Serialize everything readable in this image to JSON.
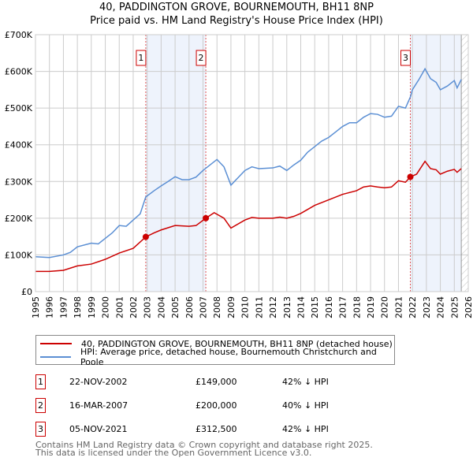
{
  "chart_data": {
    "type": "line",
    "title": "40, PADDINGTON GROVE, BOURNEMOUTH, BH11 8NP",
    "subtitle": "Price paid vs. HM Land Registry's House Price Index (HPI)",
    "xlim": [
      1995,
      2026
    ],
    "ylim": [
      0,
      700000
    ],
    "x_ticks": [
      "1995",
      "1996",
      "1997",
      "1998",
      "1999",
      "2000",
      "2001",
      "2002",
      "2003",
      "2004",
      "2005",
      "2006",
      "2007",
      "2008",
      "2009",
      "2010",
      "2011",
      "2012",
      "2013",
      "2014",
      "2015",
      "2016",
      "2017",
      "2018",
      "2019",
      "2020",
      "2021",
      "2022",
      "2023",
      "2024",
      "2025",
      "2026"
    ],
    "y_ticks": [
      {
        "v": 0,
        "label": "£0"
      },
      {
        "v": 100000,
        "label": "£100K"
      },
      {
        "v": 200000,
        "label": "£200K"
      },
      {
        "v": 300000,
        "label": "£300K"
      },
      {
        "v": 400000,
        "label": "£400K"
      },
      {
        "v": 500000,
        "label": "£500K"
      },
      {
        "v": 600000,
        "label": "£600K"
      },
      {
        "v": 700000,
        "label": "£700K"
      }
    ],
    "grid": true,
    "forecast_from": 2025.5,
    "series": [
      {
        "name": "40, PADDINGTON GROVE, BOURNEMOUTH, BH11 8NP (detached house)",
        "color": "#cc0000",
        "x": [
          1995,
          1996,
          1997,
          1998,
          1999,
          2000,
          2001,
          2002,
          2002.9,
          2003.5,
          2004,
          2005,
          2006,
          2006.5,
          2007.2,
          2007.8,
          2008.5,
          2009,
          2010,
          2010.5,
          2011,
          2012,
          2012.5,
          2013,
          2013.5,
          2014,
          2015,
          2016,
          2017,
          2018,
          2018.5,
          2019,
          2019.5,
          2020,
          2020.5,
          2021,
          2021.5,
          2021.85,
          2022.3,
          2022.9,
          2023.3,
          2023.7,
          2024,
          2024.5,
          2025,
          2025.2,
          2025.5
        ],
        "y": [
          55000,
          55000,
          58000,
          70000,
          75000,
          88000,
          105000,
          118000,
          149000,
          160000,
          168000,
          180000,
          178000,
          180000,
          200000,
          215000,
          200000,
          173000,
          195000,
          202000,
          200000,
          200000,
          203000,
          200000,
          205000,
          213000,
          235000,
          250000,
          265000,
          275000,
          285000,
          288000,
          285000,
          283000,
          285000,
          302000,
          298000,
          312500,
          320000,
          355000,
          335000,
          332000,
          320000,
          328000,
          333000,
          325000,
          335000
        ]
      },
      {
        "name": "HPI: Average price, detached house, Bournemouth Christchurch and Poole",
        "color": "#5b8fd4",
        "x": [
          1995,
          1996,
          1997,
          1997.5,
          1998,
          1999,
          1999.5,
          2000,
          2000.5,
          2001,
          2001.5,
          2002,
          2002.5,
          2002.9,
          2003.5,
          2004,
          2004.5,
          2005,
          2005.5,
          2006,
          2006.5,
          2007,
          2007.5,
          2008,
          2008.5,
          2009,
          2009.5,
          2010,
          2010.5,
          2011,
          2012,
          2012.5,
          2013,
          2013.5,
          2014,
          2014.5,
          2015,
          2015.5,
          2016,
          2016.5,
          2017,
          2017.5,
          2018,
          2018.5,
          2019,
          2019.5,
          2020,
          2020.5,
          2021,
          2021.5,
          2021.85,
          2022,
          2022.5,
          2022.9,
          2023.3,
          2023.7,
          2024,
          2024.5,
          2025,
          2025.2,
          2025.5
        ],
        "y": [
          95000,
          93000,
          100000,
          107000,
          122000,
          132000,
          130000,
          145000,
          160000,
          180000,
          178000,
          195000,
          212000,
          258000,
          275000,
          288000,
          300000,
          313000,
          305000,
          305000,
          312000,
          330000,
          345000,
          360000,
          340000,
          290000,
          310000,
          330000,
          340000,
          335000,
          337000,
          342000,
          330000,
          345000,
          358000,
          380000,
          395000,
          410000,
          420000,
          435000,
          450000,
          460000,
          460000,
          475000,
          485000,
          483000,
          475000,
          478000,
          505000,
          500000,
          530000,
          550000,
          580000,
          607000,
          580000,
          570000,
          550000,
          560000,
          575000,
          555000,
          578000
        ]
      }
    ],
    "sales": [
      {
        "n": "1",
        "x": 2002.9,
        "y": 149000,
        "date": "22-NOV-2002",
        "price": "£149,000",
        "hpi": "42% ↓ HPI"
      },
      {
        "n": "2",
        "x": 2007.2,
        "y": 200000,
        "date": "16-MAR-2007",
        "price": "£200,000",
        "hpi": "40% ↓ HPI"
      },
      {
        "n": "3",
        "x": 2021.85,
        "y": 312500,
        "date": "05-NOV-2021",
        "price": "£312,500",
        "hpi": "42% ↓ HPI"
      }
    ],
    "shaded_ranges": [
      [
        2002.9,
        2007.2
      ],
      [
        2021.85,
        2025.5
      ]
    ]
  },
  "footer": {
    "line1": "Contains HM Land Registry data © Crown copyright and database right 2025.",
    "line2": "This data is licensed under the Open Government Licence v3.0."
  }
}
